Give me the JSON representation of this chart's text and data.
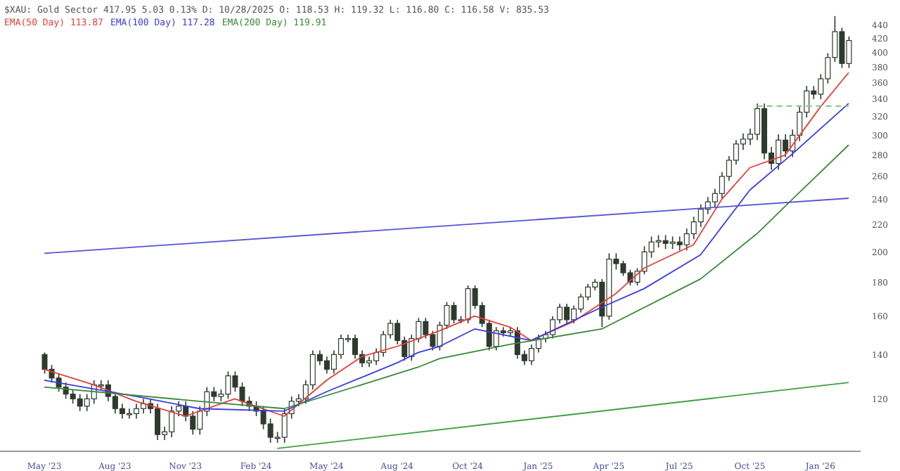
{
  "chart_data": {
    "type": "candlestick",
    "title": "$XAU: Gold Sector 417.95 5.03 0.13% D: 10/28/2025 O: 118.53 H: 119.32 L: 116.80 C: 116.58 V: 835.53",
    "color": "#2e3a2e",
    "log": "y",
    "ylim": [
      100,
      480
    ],
    "yticks": [
      120,
      140,
      160,
      180,
      200,
      220,
      240,
      260,
      280,
      300,
      320,
      340,
      360,
      380,
      400,
      420,
      440
    ],
    "legend": "top left",
    "categories": [
      "May '23",
      null,
      null,
      null,
      null,
      null,
      null,
      null,
      null,
      null,
      "Aug '23",
      null,
      null,
      null,
      null,
      null,
      null,
      null,
      null,
      null,
      "Nov '23",
      null,
      null,
      null,
      null,
      null,
      null,
      null,
      null,
      null,
      "Feb '24",
      null,
      null,
      null,
      null,
      null,
      null,
      null,
      null,
      null,
      "May '24",
      null,
      null,
      null,
      null,
      null,
      null,
      null,
      null,
      null,
      "Aug '24",
      null,
      null,
      null,
      null,
      null,
      null,
      null,
      null,
      null,
      "Oct '24",
      null,
      null,
      null,
      null,
      null,
      null,
      null,
      null,
      null,
      "Jan '25",
      null,
      null,
      null,
      null,
      null,
      null,
      null,
      null,
      null,
      "Apr '25",
      null,
      null,
      null,
      null,
      null,
      null,
      null,
      null,
      null,
      "Jul '25",
      null,
      null,
      null,
      null,
      null,
      null,
      null,
      null,
      null,
      "Oct '25",
      null,
      null,
      null,
      null,
      null,
      null,
      null,
      null,
      null,
      "Jan '26",
      null,
      null,
      null,
      null
    ],
    "ohlc": [
      [
        140,
        141,
        131,
        133
      ],
      [
        133,
        135,
        127,
        129
      ],
      [
        129,
        131,
        123,
        125
      ],
      [
        125,
        127,
        120,
        122
      ],
      [
        122,
        124,
        118,
        120
      ],
      [
        120,
        122,
        115,
        117
      ],
      [
        117,
        122,
        115,
        120
      ],
      [
        120,
        128,
        118,
        126
      ],
      [
        126,
        128,
        124,
        126
      ],
      [
        126,
        128,
        119,
        121
      ],
      [
        121,
        123,
        114,
        116
      ],
      [
        116,
        118,
        112,
        114
      ],
      [
        114,
        116,
        112,
        114
      ],
      [
        114,
        118,
        112,
        116
      ],
      [
        116,
        120,
        114,
        118
      ],
      [
        118,
        120,
        114,
        116
      ],
      [
        116,
        118,
        104,
        106
      ],
      [
        106,
        109,
        104,
        107
      ],
      [
        107,
        117,
        105,
        115
      ],
      [
        115,
        119,
        113,
        117
      ],
      [
        117,
        119,
        111,
        113
      ],
      [
        113,
        115,
        106,
        108
      ],
      [
        108,
        117,
        106,
        115
      ],
      [
        115,
        125,
        113,
        123
      ],
      [
        123,
        125,
        119,
        121
      ],
      [
        121,
        124,
        119,
        122
      ],
      [
        122,
        132,
        120,
        130
      ],
      [
        130,
        132,
        123,
        125
      ],
      [
        125,
        127,
        117,
        119
      ],
      [
        119,
        121,
        115,
        117
      ],
      [
        117,
        119,
        113,
        115
      ],
      [
        115,
        117,
        108,
        110
      ],
      [
        110,
        112,
        103,
        105
      ],
      [
        105,
        107,
        103,
        105
      ],
      [
        105,
        116,
        103,
        114
      ],
      [
        114,
        121,
        112,
        119
      ],
      [
        119,
        122,
        117,
        120
      ],
      [
        120,
        128,
        118,
        126
      ],
      [
        126,
        142,
        124,
        140
      ],
      [
        140,
        142,
        135,
        137
      ],
      [
        137,
        139,
        131,
        133
      ],
      [
        133,
        142,
        131,
        140
      ],
      [
        140,
        150,
        138,
        148
      ],
      [
        148,
        150,
        146,
        148
      ],
      [
        148,
        150,
        138,
        140
      ],
      [
        140,
        142,
        134,
        136
      ],
      [
        136,
        139,
        134,
        137
      ],
      [
        137,
        143,
        135,
        141
      ],
      [
        141,
        152,
        139,
        150
      ],
      [
        150,
        158,
        148,
        156
      ],
      [
        156,
        158,
        145,
        147
      ],
      [
        147,
        149,
        137,
        139
      ],
      [
        139,
        150,
        137,
        148
      ],
      [
        148,
        159,
        146,
        157
      ],
      [
        157,
        159,
        148,
        150
      ],
      [
        150,
        152,
        142,
        144
      ],
      [
        144,
        157,
        142,
        155
      ],
      [
        155,
        168,
        153,
        166
      ],
      [
        166,
        168,
        156,
        158
      ],
      [
        158,
        160,
        156,
        158
      ],
      [
        158,
        178,
        156,
        176
      ],
      [
        176,
        178,
        164,
        166
      ],
      [
        166,
        168,
        154,
        156
      ],
      [
        156,
        158,
        142,
        144
      ],
      [
        144,
        154,
        142,
        152
      ],
      [
        152,
        154,
        149,
        151
      ],
      [
        151,
        154,
        149,
        152
      ],
      [
        152,
        154,
        138,
        140
      ],
      [
        140,
        142,
        135,
        137
      ],
      [
        137,
        145,
        135,
        143
      ],
      [
        143,
        150,
        141,
        148
      ],
      [
        148,
        152,
        146,
        150
      ],
      [
        150,
        160,
        148,
        158
      ],
      [
        158,
        167,
        156,
        165
      ],
      [
        165,
        167,
        156,
        158
      ],
      [
        158,
        166,
        156,
        164
      ],
      [
        164,
        173,
        162,
        171
      ],
      [
        171,
        179,
        169,
        177
      ],
      [
        177,
        182,
        175,
        180
      ],
      [
        180,
        182,
        154,
        160
      ],
      [
        160,
        199,
        158,
        195
      ],
      [
        195,
        199,
        188,
        192
      ],
      [
        192,
        194,
        184,
        186
      ],
      [
        186,
        188,
        178,
        180
      ],
      [
        180,
        189,
        178,
        187
      ],
      [
        187,
        204,
        185,
        200
      ],
      [
        200,
        211,
        196,
        207
      ],
      [
        207,
        212,
        203,
        208
      ],
      [
        208,
        212,
        202,
        206
      ],
      [
        206,
        211,
        202,
        207
      ],
      [
        207,
        211,
        201,
        205
      ],
      [
        205,
        217,
        201,
        213
      ],
      [
        213,
        226,
        209,
        222
      ],
      [
        222,
        236,
        218,
        232
      ],
      [
        232,
        242,
        228,
        238
      ],
      [
        238,
        249,
        234,
        245
      ],
      [
        245,
        264,
        241,
        260
      ],
      [
        260,
        279,
        256,
        275
      ],
      [
        275,
        295,
        271,
        291
      ],
      [
        291,
        302,
        285,
        296
      ],
      [
        296,
        307,
        290,
        301
      ],
      [
        301,
        335,
        295,
        329
      ],
      [
        329,
        335,
        276,
        282
      ],
      [
        282,
        288,
        266,
        272
      ],
      [
        272,
        301,
        266,
        295
      ],
      [
        295,
        301,
        278,
        284
      ],
      [
        284,
        306,
        278,
        300
      ],
      [
        300,
        331,
        294,
        325
      ],
      [
        325,
        356,
        319,
        350
      ],
      [
        350,
        356,
        340,
        346
      ],
      [
        346,
        371,
        340,
        365
      ],
      [
        365,
        399,
        359,
        393
      ],
      [
        393,
        454,
        387,
        430
      ],
      [
        430,
        436,
        379,
        385
      ],
      [
        385,
        423,
        379,
        417
      ]
    ],
    "series": [
      {
        "type": "line",
        "name": "EMA(50 Day) 113.87",
        "color": "#e0413a",
        "values": [
          133,
          null,
          null,
          null,
          null,
          null,
          null,
          126,
          null,
          null,
          null,
          null,
          null,
          119,
          null,
          null,
          null,
          null,
          null,
          null,
          113,
          null,
          null,
          null,
          null,
          null,
          null,
          120,
          null,
          null,
          null,
          null,
          null,
          null,
          113,
          null,
          null,
          null,
          null,
          null,
          128,
          null,
          null,
          null,
          null,
          139,
          null,
          null,
          null,
          null,
          144,
          null,
          null,
          null,
          null,
          null,
          152,
          null,
          null,
          null,
          null,
          160,
          null,
          null,
          null,
          null,
          154,
          null,
          null,
          147,
          null,
          null,
          null,
          null,
          null,
          157,
          null,
          null,
          null,
          null,
          null,
          173,
          null,
          null,
          null,
          189,
          null,
          null,
          null,
          null,
          null,
          null,
          205,
          null,
          null,
          null,
          240,
          null,
          null,
          null,
          268,
          null,
          null,
          null,
          null,
          280,
          null,
          null,
          null,
          null,
          331,
          null,
          null,
          null,
          373
        ]
      },
      {
        "type": "line",
        "name": "EMA(100 Day) 117.28",
        "color": "#3b3be0",
        "values": [
          128,
          null,
          null,
          null,
          null,
          null,
          null,
          null,
          null,
          null,
          null,
          null,
          null,
          121,
          null,
          null,
          null,
          null,
          null,
          null,
          null,
          null,
          116,
          null,
          null,
          null,
          null,
          null,
          null,
          null,
          null,
          null,
          null,
          null,
          115,
          null,
          null,
          null,
          null,
          null,
          123,
          null,
          null,
          null,
          null,
          null,
          null,
          null,
          null,
          null,
          136,
          null,
          null,
          141,
          null,
          null,
          144,
          null,
          null,
          null,
          null,
          153,
          null,
          null,
          null,
          null,
          null,
          null,
          null,
          147,
          null,
          null,
          null,
          null,
          null,
          null,
          null,
          null,
          null,
          165,
          null,
          null,
          null,
          null,
          null,
          176,
          null,
          null,
          null,
          null,
          null,
          null,
          null,
          198,
          null,
          null,
          null,
          null,
          null,
          null,
          248,
          null,
          null,
          null,
          null,
          null,
          281,
          null,
          null,
          null,
          null,
          null,
          null,
          null,
          335
        ]
      },
      {
        "type": "line",
        "name": "EMA(200 Day) 119.91",
        "color": "#3a8a3a",
        "values": [
          125,
          null,
          null,
          null,
          null,
          null,
          null,
          null,
          null,
          null,
          null,
          null,
          null,
          null,
          null,
          null,
          null,
          null,
          null,
          null,
          null,
          null,
          119,
          null,
          null,
          null,
          null,
          null,
          null,
          null,
          null,
          null,
          null,
          null,
          116,
          null,
          null,
          null,
          null,
          null,
          null,
          null,
          null,
          null,
          null,
          null,
          127,
          null,
          null,
          null,
          null,
          null,
          null,
          134,
          null,
          null,
          138,
          null,
          null,
          null,
          null,
          null,
          null,
          null,
          null,
          null,
          145,
          null,
          null,
          null,
          null,
          null,
          null,
          null,
          null,
          null,
          null,
          null,
          null,
          153,
          null,
          null,
          null,
          null,
          null,
          null,
          null,
          null,
          null,
          null,
          null,
          null,
          null,
          182,
          null,
          null,
          null,
          null,
          null,
          null,
          null,
          213,
          null,
          null,
          null,
          null,
          240,
          null,
          null,
          null,
          null,
          null,
          null,
          null,
          290
        ]
      },
      {
        "type": "line",
        "color": "#5555d5",
        "values": [
          199,
          null,
          null,
          null,
          null,
          null,
          null,
          null,
          null,
          null,
          null,
          null,
          null,
          null,
          null,
          null,
          null,
          null,
          null,
          null,
          null,
          null,
          null,
          null,
          null,
          null,
          null,
          null,
          null,
          null,
          null,
          null,
          null,
          null,
          null,
          null,
          null,
          null,
          null,
          null,
          null,
          null,
          null,
          null,
          null,
          null,
          null,
          null,
          null,
          null,
          null,
          null,
          null,
          null,
          null,
          null,
          null,
          null,
          null,
          null,
          null,
          null,
          null,
          null,
          null,
          null,
          null,
          null,
          null,
          null,
          null,
          null,
          null,
          null,
          null,
          null,
          null,
          null,
          null,
          null,
          null,
          null,
          null,
          null,
          null,
          null,
          null,
          null,
          null,
          null,
          null,
          null,
          null,
          null,
          null,
          null,
          null,
          null,
          null,
          null,
          null,
          null,
          null,
          null,
          null,
          null,
          null,
          null,
          null,
          null,
          null,
          null,
          null,
          null,
          241
        ]
      },
      {
        "type": "line",
        "color": "#3f9f3f",
        "values": [
          null,
          null,
          null,
          null,
          null,
          null,
          null,
          null,
          null,
          null,
          null,
          null,
          null,
          null,
          null,
          null,
          null,
          null,
          null,
          null,
          null,
          null,
          null,
          null,
          null,
          null,
          null,
          null,
          null,
          null,
          null,
          null,
          null,
          101,
          null,
          null,
          null,
          null,
          null,
          null,
          null,
          null,
          null,
          null,
          null,
          null,
          null,
          null,
          null,
          null,
          null,
          null,
          null,
          null,
          null,
          null,
          null,
          null,
          null,
          null,
          null,
          null,
          null,
          null,
          null,
          null,
          null,
          null,
          null,
          null,
          null,
          null,
          null,
          null,
          null,
          null,
          null,
          null,
          null,
          null,
          null,
          null,
          null,
          null,
          null,
          null,
          null,
          null,
          null,
          null,
          null,
          null,
          null,
          null,
          null,
          null,
          null,
          null,
          null,
          null,
          null,
          null,
          null,
          null,
          null,
          null,
          null,
          null,
          null,
          null,
          null,
          null,
          null,
          null,
          127
        ]
      },
      {
        "type": "line",
        "color": "#8cc88c",
        "line_style": "dashed",
        "values": [
          null,
          null,
          null,
          null,
          null,
          null,
          null,
          null,
          null,
          null,
          null,
          null,
          null,
          null,
          null,
          null,
          null,
          null,
          null,
          null,
          null,
          null,
          null,
          null,
          null,
          null,
          null,
          null,
          null,
          null,
          null,
          null,
          null,
          null,
          null,
          null,
          null,
          null,
          null,
          null,
          null,
          null,
          null,
          null,
          null,
          null,
          null,
          null,
          null,
          null,
          null,
          null,
          null,
          null,
          null,
          null,
          null,
          null,
          null,
          null,
          null,
          null,
          null,
          null,
          null,
          null,
          null,
          null,
          null,
          null,
          null,
          null,
          null,
          null,
          null,
          null,
          null,
          null,
          null,
          null,
          null,
          null,
          null,
          null,
          null,
          null,
          null,
          null,
          null,
          null,
          null,
          null,
          null,
          null,
          null,
          null,
          null,
          null,
          null,
          null,
          null,
          332,
          null,
          null,
          null,
          null,
          null,
          null,
          null,
          null,
          null,
          null,
          null,
          null,
          332
        ]
      }
    ]
  }
}
